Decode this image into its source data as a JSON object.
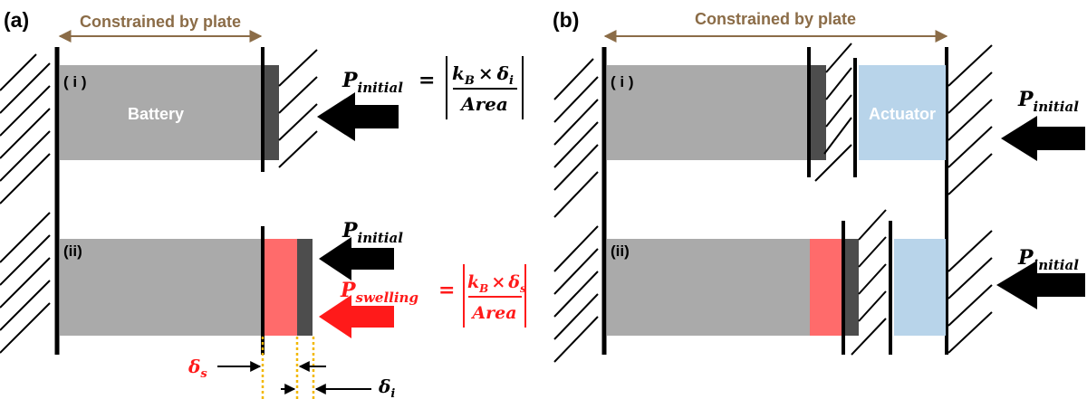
{
  "colors": {
    "battery": "#aaaaaa",
    "actuator": "#b8d4ea",
    "swelling": "#ff6b6b",
    "plate_dark": "#4d4d4d",
    "brown": "#8b6c47",
    "red": "#ff1a1a",
    "delta_marker": "#f2b800",
    "black": "#000000"
  },
  "panel_a": {
    "label": "(a)",
    "constraint_label": "Constrained by plate",
    "row1": {
      "label": "( i )",
      "battery_label": "Battery"
    },
    "row2": {
      "label": "(ii)"
    },
    "eq_initial": {
      "lhs": "P",
      "lhs_sub": "initial",
      "num_k": "k",
      "num_k_sub": "B",
      "num_op": "×",
      "num_d": "δ",
      "num_d_sub": "i",
      "den": "Area"
    },
    "eq_swelling": {
      "lhs": "P",
      "lhs_sub": "swelling",
      "num_k": "k",
      "num_k_sub": "B",
      "num_op": "×",
      "num_d": "δ",
      "num_d_sub": "s",
      "den": "Area"
    },
    "p_initial_label": {
      "main": "P",
      "sub": "initial"
    },
    "delta_s": {
      "main": "δ",
      "sub": "s"
    },
    "delta_i": {
      "main": "δ",
      "sub": "i"
    }
  },
  "panel_b": {
    "label": "(b)",
    "constraint_label": "Constrained by plate",
    "row1": {
      "label": "( i )",
      "actuator_label": "Actuator"
    },
    "row2": {
      "label": "(ii)"
    },
    "p_initial_1": {
      "main": "P",
      "sub": "initial"
    },
    "p_initial_2": {
      "main": "P",
      "sub": "initial"
    }
  }
}
